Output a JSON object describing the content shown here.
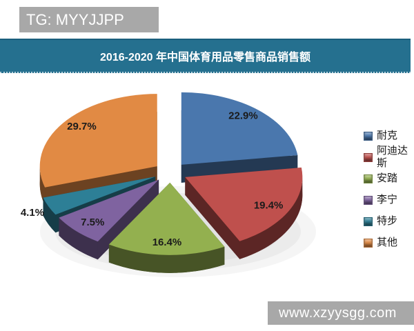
{
  "watermarks": {
    "top": "TG: MYYJJPP",
    "bottom": "www.xzyysgg.com"
  },
  "header": {
    "title": "2016-2020 年中国体育用品零售商品销售额",
    "bg_color": "#25708f"
  },
  "chart_data": {
    "type": "pie",
    "style": "3d-exploded",
    "title": "2016-2020 年中国体育用品零售商品销售额",
    "labels": [
      "耐克",
      "阿迪达斯",
      "安踏",
      "李宁",
      "特步",
      "其他"
    ],
    "values": [
      22.9,
      19.4,
      16.4,
      7.5,
      4.1,
      29.7
    ],
    "value_labels": [
      "22.9%",
      "19.4%",
      "16.4%",
      "7.5%",
      "4.1%",
      "29.7%"
    ],
    "colors": [
      "#4a77ad",
      "#bf504d",
      "#93b04f",
      "#7f63a0",
      "#2d7f96",
      "#e18a44"
    ],
    "legend_position": "right",
    "start_angle_deg": -90,
    "direction": "clockwise"
  }
}
